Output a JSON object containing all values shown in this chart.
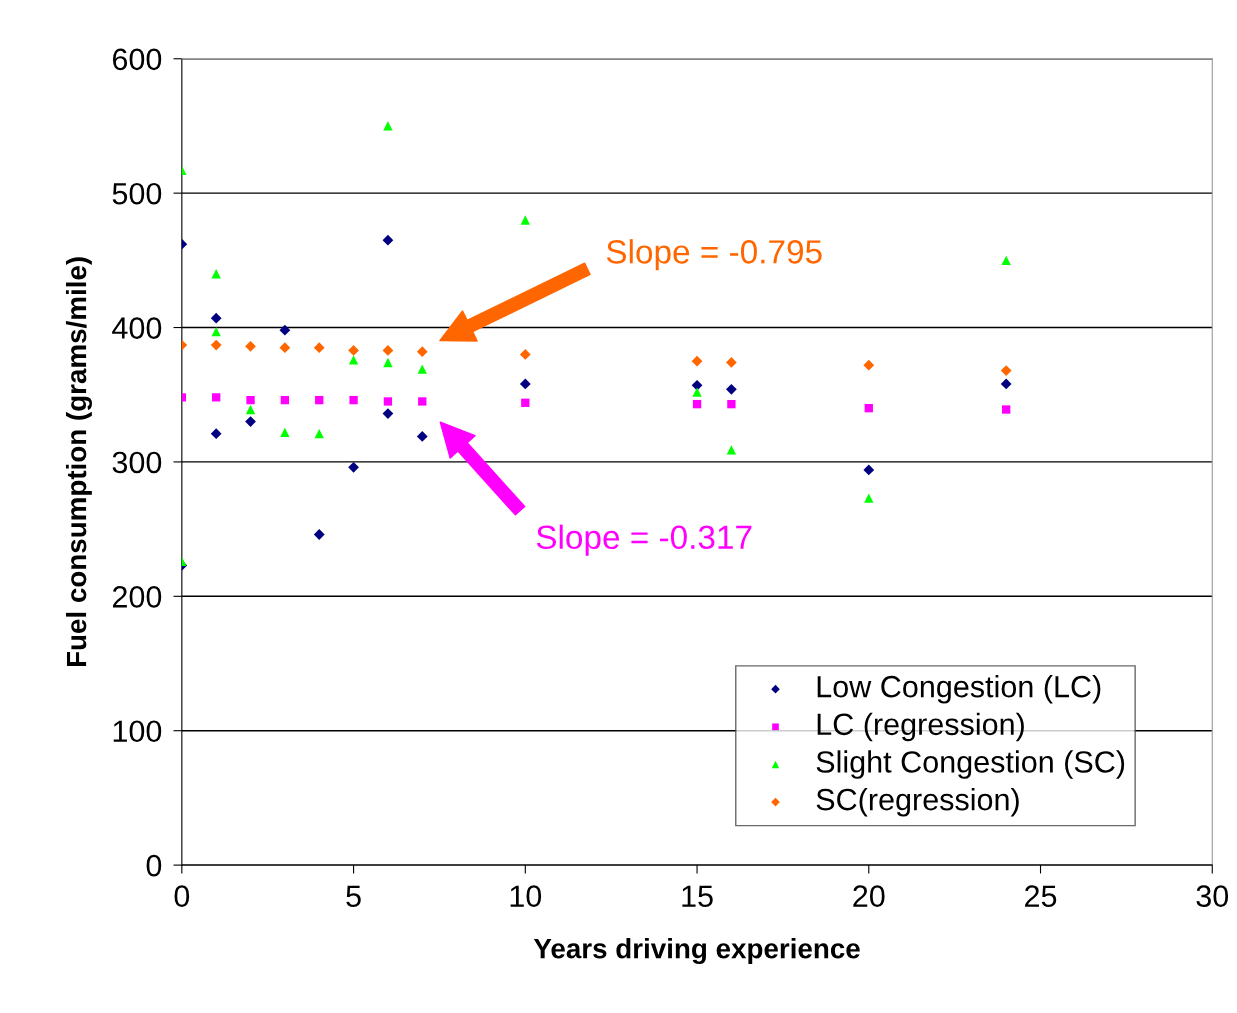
{
  "chart_data": {
    "type": "scatter",
    "xlabel": "Years driving experience",
    "ylabel": "Fuel consumption (grams/mile)",
    "xlim": [
      0,
      30
    ],
    "xticks": [
      0,
      5,
      10,
      15,
      20,
      25,
      30
    ],
    "ylim": [
      0,
      600
    ],
    "yticks": [
      0,
      100,
      200,
      300,
      400,
      500,
      600
    ],
    "grid": "y",
    "legend": "bottom right",
    "series": [
      {
        "name": "Low Congestion (LC)",
        "color": "#000080",
        "marker": "diamond",
        "x": [
          0,
          0,
          1,
          1,
          2,
          3,
          4,
          5,
          6,
          6,
          7,
          10,
          15,
          16,
          20,
          24
        ],
        "values": [
          462,
          223,
          407,
          321,
          330,
          398,
          246,
          296,
          465,
          336,
          319,
          358,
          357,
          354,
          294,
          358
        ]
      },
      {
        "name": "LC (regression)",
        "color": "#ff00ff",
        "marker": "square",
        "x": [
          0,
          1,
          2,
          3,
          4,
          5,
          6,
          7,
          10,
          15,
          16,
          20,
          24
        ],
        "values": [
          348,
          348,
          346,
          346,
          346,
          346,
          345,
          345,
          344,
          343,
          343,
          340,
          339
        ]
      },
      {
        "name": "Slight Congestion (SC)",
        "color": "#00ff00",
        "marker": "triangle",
        "x": [
          0,
          0,
          1,
          1,
          2,
          3,
          4,
          5,
          6,
          6,
          7,
          10,
          15,
          16,
          20,
          24
        ],
        "values": [
          517,
          226,
          440,
          397,
          339,
          322,
          321,
          376,
          550,
          374,
          369,
          480,
          352,
          309,
          273,
          450
        ]
      },
      {
        "name": "SC(regression)",
        "color": "#ff6600",
        "marker": "diamond",
        "x": [
          0,
          1,
          2,
          3,
          4,
          5,
          6,
          7,
          10,
          15,
          16,
          20,
          24
        ],
        "values": [
          387,
          387,
          386,
          385,
          385,
          383,
          383,
          382,
          380,
          375,
          374,
          372,
          368
        ]
      }
    ],
    "annotations": [
      "Slope = -0.795",
      "Slope = -0.317"
    ]
  }
}
